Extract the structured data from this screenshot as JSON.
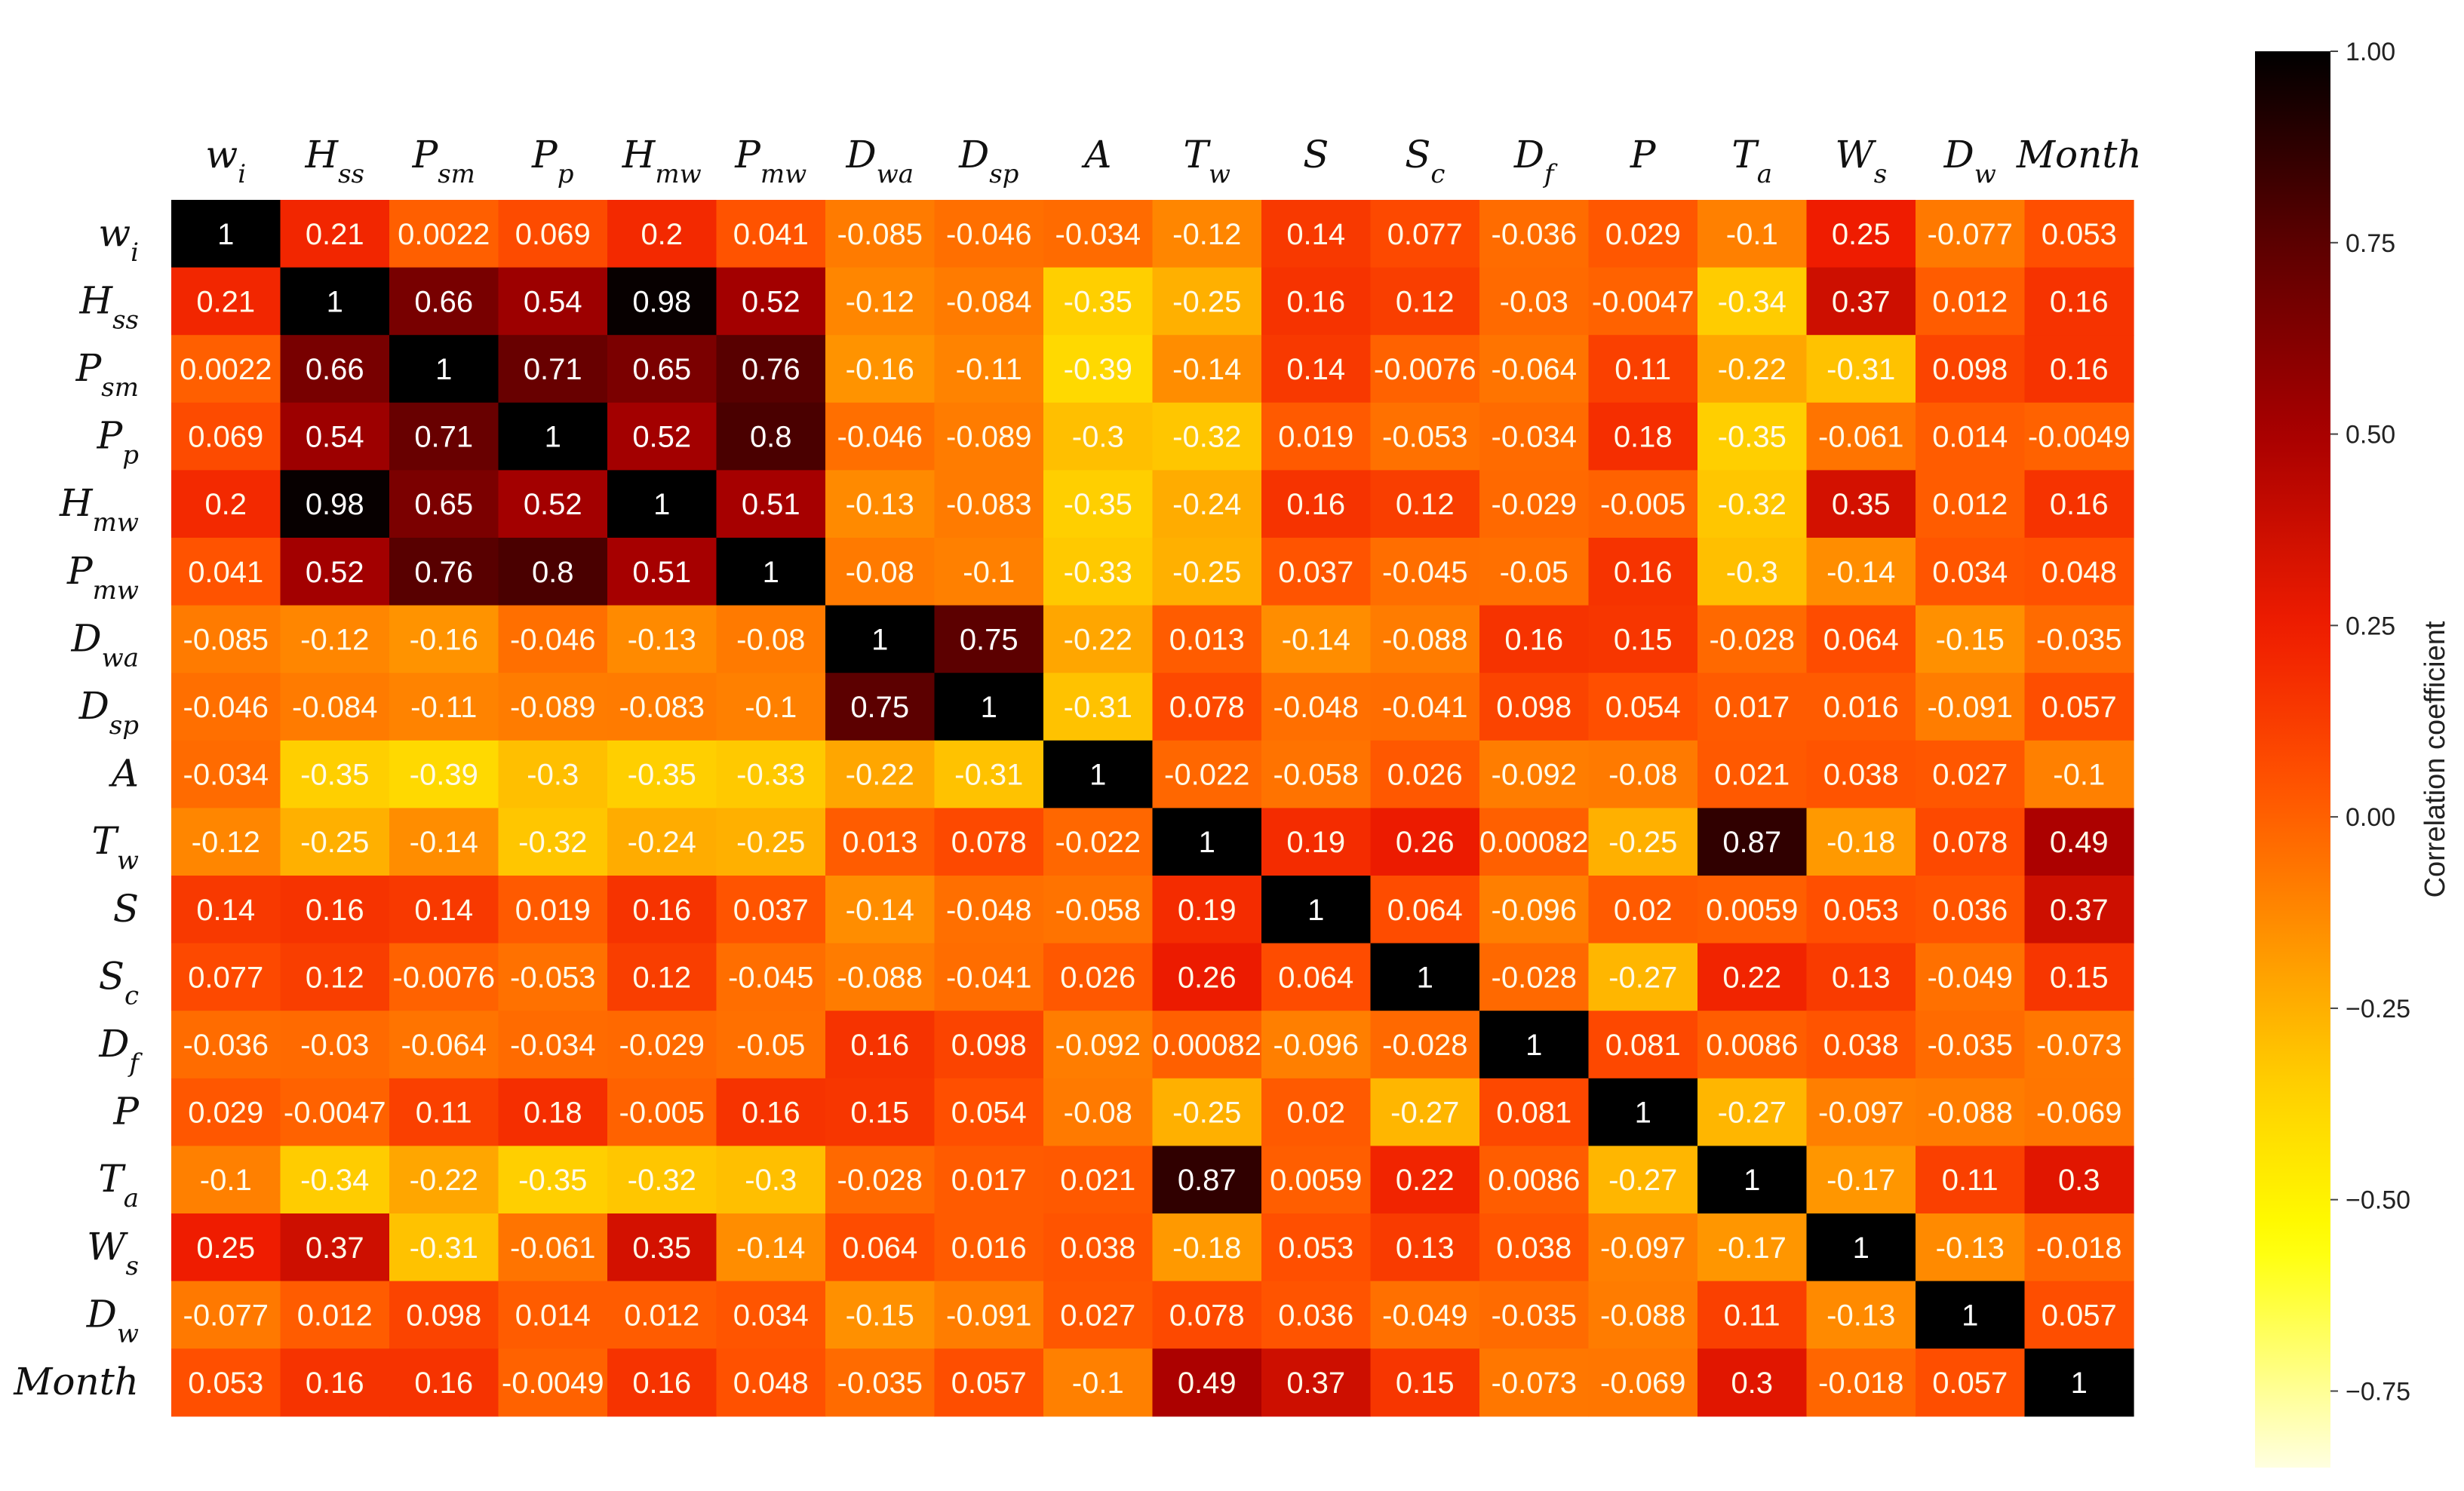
{
  "chart_data": {
    "type": "heatmap",
    "rows": [
      {
        "main": "w",
        "sub": "i"
      },
      {
        "main": "H",
        "sub": "ss"
      },
      {
        "main": "P",
        "sub": "sm"
      },
      {
        "main": "P",
        "sub": "p"
      },
      {
        "main": "H",
        "sub": "mw"
      },
      {
        "main": "P",
        "sub": "mw"
      },
      {
        "main": "D",
        "sub": "wa"
      },
      {
        "main": "D",
        "sub": "sp"
      },
      {
        "main": "A",
        "sub": ""
      },
      {
        "main": "T",
        "sub": "w"
      },
      {
        "main": "S",
        "sub": ""
      },
      {
        "main": "S",
        "sub": "c"
      },
      {
        "main": "D",
        "sub": "f"
      },
      {
        "main": "P",
        "sub": ""
      },
      {
        "main": "T",
        "sub": "a"
      },
      {
        "main": "W",
        "sub": "s"
      },
      {
        "main": "D",
        "sub": "w"
      },
      {
        "main": "Month",
        "sub": ""
      }
    ],
    "values": [
      [
        "1",
        "0.21",
        "0.0022",
        "0.069",
        "0.2",
        "0.041",
        "-0.085",
        "-0.046",
        "-0.034",
        "-0.12",
        "0.14",
        "0.077",
        "-0.036",
        "0.029",
        "-0.1",
        "0.25",
        "-0.077",
        "0.053"
      ],
      [
        "0.21",
        "1",
        "0.66",
        "0.54",
        "0.98",
        "0.52",
        "-0.12",
        "-0.084",
        "-0.35",
        "-0.25",
        "0.16",
        "0.12",
        "-0.03",
        "-0.0047",
        "-0.34",
        "0.37",
        "0.012",
        "0.16"
      ],
      [
        "0.0022",
        "0.66",
        "1",
        "0.71",
        "0.65",
        "0.76",
        "-0.16",
        "-0.11",
        "-0.39",
        "-0.14",
        "0.14",
        "-0.0076",
        "-0.064",
        "0.11",
        "-0.22",
        "-0.31",
        "0.098",
        "0.16"
      ],
      [
        "0.069",
        "0.54",
        "0.71",
        "1",
        "0.52",
        "0.8",
        "-0.046",
        "-0.089",
        "-0.3",
        "-0.32",
        "0.019",
        "-0.053",
        "-0.034",
        "0.18",
        "-0.35",
        "-0.061",
        "0.014",
        "-0.0049"
      ],
      [
        "0.2",
        "0.98",
        "0.65",
        "0.52",
        "1",
        "0.51",
        "-0.13",
        "-0.083",
        "-0.35",
        "-0.24",
        "0.16",
        "0.12",
        "-0.029",
        "-0.005",
        "-0.32",
        "0.35",
        "0.012",
        "0.16"
      ],
      [
        "0.041",
        "0.52",
        "0.76",
        "0.8",
        "0.51",
        "1",
        "-0.08",
        "-0.1",
        "-0.33",
        "-0.25",
        "0.037",
        "-0.045",
        "-0.05",
        "0.16",
        "-0.3",
        "-0.14",
        "0.034",
        "0.048"
      ],
      [
        "-0.085",
        "-0.12",
        "-0.16",
        "-0.046",
        "-0.13",
        "-0.08",
        "1",
        "0.75",
        "-0.22",
        "0.013",
        "-0.14",
        "-0.088",
        "0.16",
        "0.15",
        "-0.028",
        "0.064",
        "-0.15",
        "-0.035"
      ],
      [
        "-0.046",
        "-0.084",
        "-0.11",
        "-0.089",
        "-0.083",
        "-0.1",
        "0.75",
        "1",
        "-0.31",
        "0.078",
        "-0.048",
        "-0.041",
        "0.098",
        "0.054",
        "0.017",
        "0.016",
        "-0.091",
        "0.057"
      ],
      [
        "-0.034",
        "-0.35",
        "-0.39",
        "-0.3",
        "-0.35",
        "-0.33",
        "-0.22",
        "-0.31",
        "1",
        "-0.022",
        "-0.058",
        "0.026",
        "-0.092",
        "-0.08",
        "0.021",
        "0.038",
        "0.027",
        "-0.1"
      ],
      [
        "-0.12",
        "-0.25",
        "-0.14",
        "-0.32",
        "-0.24",
        "-0.25",
        "0.013",
        "0.078",
        "-0.022",
        "1",
        "0.19",
        "0.26",
        "0.00082",
        "-0.25",
        "0.87",
        "-0.18",
        "0.078",
        "0.49"
      ],
      [
        "0.14",
        "0.16",
        "0.14",
        "0.019",
        "0.16",
        "0.037",
        "-0.14",
        "-0.048",
        "-0.058",
        "0.19",
        "1",
        "0.064",
        "-0.096",
        "0.02",
        "0.0059",
        "0.053",
        "0.036",
        "0.37"
      ],
      [
        "0.077",
        "0.12",
        "-0.0076",
        "-0.053",
        "0.12",
        "-0.045",
        "-0.088",
        "-0.041",
        "0.026",
        "0.26",
        "0.064",
        "1",
        "-0.028",
        "-0.27",
        "0.22",
        "0.13",
        "-0.049",
        "0.15"
      ],
      [
        "-0.036",
        "-0.03",
        "-0.064",
        "-0.034",
        "-0.029",
        "-0.05",
        "0.16",
        "0.098",
        "-0.092",
        "0.00082",
        "-0.096",
        "-0.028",
        "1",
        "0.081",
        "0.0086",
        "0.038",
        "-0.035",
        "-0.073"
      ],
      [
        "0.029",
        "-0.0047",
        "0.11",
        "0.18",
        "-0.005",
        "0.16",
        "0.15",
        "0.054",
        "-0.08",
        "-0.25",
        "0.02",
        "-0.27",
        "0.081",
        "1",
        "-0.27",
        "-0.097",
        "-0.088",
        "-0.069"
      ],
      [
        "-0.1",
        "-0.34",
        "-0.22",
        "-0.35",
        "-0.32",
        "-0.3",
        "-0.028",
        "0.017",
        "0.021",
        "0.87",
        "0.0059",
        "0.22",
        "0.0086",
        "-0.27",
        "1",
        "-0.17",
        "0.11",
        "0.3"
      ],
      [
        "0.25",
        "0.37",
        "-0.31",
        "-0.061",
        "0.35",
        "-0.14",
        "0.064",
        "0.016",
        "0.038",
        "-0.18",
        "0.053",
        "0.13",
        "0.038",
        "-0.097",
        "-0.17",
        "1",
        "-0.13",
        "-0.018"
      ],
      [
        "-0.077",
        "0.012",
        "0.098",
        "0.014",
        "0.012",
        "0.034",
        "-0.15",
        "-0.091",
        "0.027",
        "0.078",
        "0.036",
        "-0.049",
        "-0.035",
        "-0.088",
        "0.11",
        "-0.13",
        "1",
        "0.057"
      ],
      [
        "0.053",
        "0.16",
        "0.16",
        "-0.0049",
        "0.16",
        "0.048",
        "-0.035",
        "0.057",
        "-0.1",
        "0.49",
        "0.37",
        "0.15",
        "-0.073",
        "-0.069",
        "0.3",
        "-0.018",
        "0.057",
        "1"
      ]
    ],
    "colorbar": {
      "label": "Correlation coefficient",
      "ticks": [
        "1.00",
        "0.75",
        "0.50",
        "0.25",
        "0.00",
        "−0.25",
        "−0.50",
        "−0.75"
      ],
      "tick_values": [
        1.0,
        0.75,
        0.5,
        0.25,
        0.0,
        -0.25,
        -0.5,
        -0.75
      ],
      "range": [
        -0.85,
        1.0
      ]
    },
    "colormap": {
      "name": "hot",
      "stops": [
        [
          -0.85,
          "#ffffe0"
        ],
        [
          -0.55,
          "#ffff00"
        ],
        [
          -0.35,
          "#ffcf00"
        ],
        [
          -0.15,
          "#ff9000"
        ],
        [
          0.05,
          "#ff5000"
        ],
        [
          0.25,
          "#ef1c00"
        ],
        [
          0.5,
          "#a90000"
        ],
        [
          0.75,
          "#5c0000"
        ],
        [
          1.0,
          "#000000"
        ]
      ]
    }
  }
}
